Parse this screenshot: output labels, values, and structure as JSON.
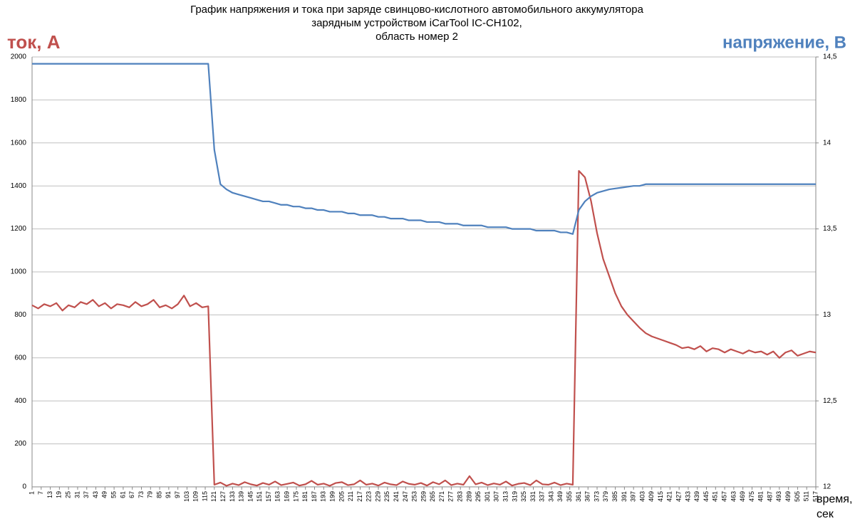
{
  "chart_data": {
    "type": "line",
    "title": [
      "График напряжения и тока при заряде свинцово-кислотного автомобильного аккумулятора",
      "зарядным устройством iCarTool IC-CH102,",
      "область номер 2"
    ],
    "y_label": "ток, А",
    "y2_label": "напряжение, В",
    "x_label": [
      "время,",
      "сек"
    ],
    "x": [
      1,
      5,
      9,
      13,
      17,
      21,
      25,
      29,
      33,
      37,
      41,
      45,
      49,
      53,
      57,
      61,
      65,
      69,
      73,
      77,
      81,
      85,
      89,
      93,
      97,
      101,
      105,
      109,
      113,
      117,
      121,
      125,
      129,
      133,
      137,
      141,
      145,
      149,
      153,
      157,
      161,
      165,
      169,
      173,
      177,
      181,
      185,
      189,
      193,
      197,
      201,
      205,
      209,
      213,
      217,
      221,
      225,
      229,
      233,
      237,
      241,
      245,
      249,
      253,
      257,
      261,
      265,
      269,
      273,
      277,
      281,
      285,
      289,
      293,
      297,
      301,
      305,
      309,
      313,
      317,
      321,
      325,
      329,
      333,
      337,
      341,
      345,
      349,
      353,
      357,
      361,
      365,
      369,
      373,
      377,
      381,
      385,
      389,
      393,
      397,
      401,
      405,
      409,
      413,
      417,
      421,
      425,
      429,
      433,
      437,
      441,
      445,
      449,
      453,
      457,
      461,
      465,
      469,
      473,
      477,
      481,
      485,
      489,
      493,
      497,
      501,
      505,
      509,
      513,
      517
    ],
    "series": [
      {
        "name": "ток, А",
        "color": "#c0504d",
        "axis": "y",
        "values": [
          845,
          830,
          850,
          840,
          855,
          820,
          845,
          835,
          860,
          850,
          870,
          840,
          855,
          830,
          850,
          845,
          835,
          860,
          840,
          850,
          870,
          835,
          845,
          830,
          850,
          890,
          840,
          855,
          835,
          840,
          10,
          20,
          5,
          15,
          8,
          22,
          12,
          6,
          18,
          10,
          25,
          8,
          14,
          20,
          6,
          12,
          28,
          10,
          15,
          5,
          18,
          22,
          8,
          12,
          30,
          10,
          15,
          6,
          20,
          12,
          8,
          25,
          14,
          10,
          18,
          6,
          22,
          12,
          30,
          8,
          15,
          10,
          50,
          12,
          20,
          8,
          16,
          10,
          25,
          6,
          14,
          18,
          8,
          30,
          12,
          10,
          20,
          8,
          15,
          10,
          1470,
          1440,
          1330,
          1180,
          1060,
          980,
          900,
          840,
          800,
          770,
          740,
          715,
          700,
          690,
          680,
          670,
          660,
          645,
          650,
          640,
          655,
          630,
          645,
          640,
          625,
          640,
          630,
          620,
          635,
          625,
          630,
          615,
          630,
          600,
          625,
          635,
          610,
          620,
          630,
          625
        ]
      },
      {
        "name": "напряжение, В",
        "color": "#4f81bd",
        "axis": "y2",
        "values": [
          14.46,
          14.46,
          14.46,
          14.46,
          14.46,
          14.46,
          14.46,
          14.46,
          14.46,
          14.46,
          14.46,
          14.46,
          14.46,
          14.46,
          14.46,
          14.46,
          14.46,
          14.46,
          14.46,
          14.46,
          14.46,
          14.46,
          14.46,
          14.46,
          14.46,
          14.46,
          14.46,
          14.46,
          14.46,
          14.46,
          13.96,
          13.76,
          13.73,
          13.71,
          13.7,
          13.69,
          13.68,
          13.67,
          13.66,
          13.66,
          13.65,
          13.64,
          13.64,
          13.63,
          13.63,
          13.62,
          13.62,
          13.61,
          13.61,
          13.6,
          13.6,
          13.6,
          13.59,
          13.59,
          13.58,
          13.58,
          13.58,
          13.57,
          13.57,
          13.56,
          13.56,
          13.56,
          13.55,
          13.55,
          13.55,
          13.54,
          13.54,
          13.54,
          13.53,
          13.53,
          13.53,
          13.52,
          13.52,
          13.52,
          13.52,
          13.51,
          13.51,
          13.51,
          13.51,
          13.5,
          13.5,
          13.5,
          13.5,
          13.49,
          13.49,
          13.49,
          13.49,
          13.48,
          13.48,
          13.47,
          13.61,
          13.66,
          13.69,
          13.71,
          13.72,
          13.73,
          13.735,
          13.74,
          13.745,
          13.75,
          13.75,
          13.76,
          13.76,
          13.76,
          13.76,
          13.76,
          13.76,
          13.76,
          13.76,
          13.76,
          13.76,
          13.76,
          13.76,
          13.76,
          13.76,
          13.76,
          13.76,
          13.76,
          13.76,
          13.76,
          13.76,
          13.76,
          13.76,
          13.76,
          13.76,
          13.76,
          13.76,
          13.76,
          13.76,
          13.76
        ]
      }
    ],
    "xlim": [
      1,
      517
    ],
    "xticks": [
      1,
      7,
      13,
      19,
      25,
      31,
      37,
      43,
      49,
      55,
      61,
      67,
      73,
      79,
      85,
      91,
      97,
      103,
      109,
      115,
      121,
      127,
      133,
      139,
      145,
      151,
      157,
      163,
      169,
      175,
      181,
      187,
      193,
      199,
      205,
      211,
      217,
      223,
      229,
      235,
      241,
      247,
      253,
      259,
      265,
      271,
      277,
      283,
      289,
      295,
      301,
      307,
      313,
      319,
      325,
      331,
      337,
      343,
      349,
      355,
      361,
      367,
      373,
      379,
      385,
      391,
      397,
      403,
      409,
      415,
      421,
      427,
      433,
      439,
      445,
      451,
      457,
      463,
      469,
      475,
      481,
      487,
      493,
      499,
      505,
      511,
      517
    ],
    "ylim": [
      0,
      2000
    ],
    "yticks": [
      0,
      200,
      400,
      600,
      800,
      1000,
      1200,
      1400,
      1600,
      1800,
      2000
    ],
    "y2lim": [
      12,
      14.5
    ],
    "y2ticks": [
      12,
      {
        "value": 12.5,
        "label": "12,5"
      },
      13,
      {
        "value": 13.5,
        "label": "13,5"
      },
      14,
      {
        "value": 14.5,
        "label": "14,5"
      }
    ],
    "grid": true
  }
}
